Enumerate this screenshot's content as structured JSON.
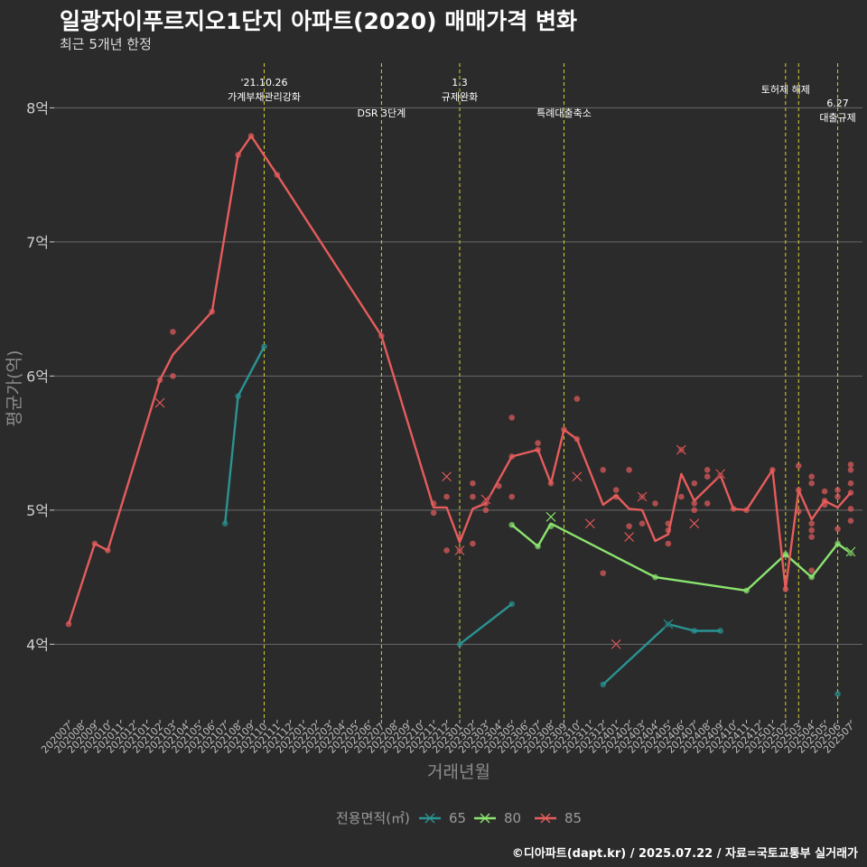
{
  "title": "일광자이푸르지오1단지 아파트(2020) 매매가격 변화",
  "subtitle": "최근 5개년 한정",
  "caption": "©디아파트(dapt.kr) / 2025.07.22 / 자료=국토교통부 실거래가",
  "chart_data": {
    "type": "line",
    "xlabel": "거래년월",
    "ylabel": "평균가(억)",
    "ylim": [
      3.45,
      8.4
    ],
    "yticks": [
      {
        "v": 4,
        "label": "4억"
      },
      {
        "v": 5,
        "label": "5억"
      },
      {
        "v": 6,
        "label": "6억"
      },
      {
        "v": 7,
        "label": "7억"
      },
      {
        "v": 8,
        "label": "8억"
      }
    ],
    "x": [
      "202007",
      "202008",
      "202009",
      "202010",
      "202011",
      "202012",
      "202101",
      "202102",
      "202103",
      "202104",
      "202105",
      "202106",
      "202107",
      "202108",
      "202109",
      "202110",
      "202111",
      "202112",
      "202201",
      "202202",
      "202203",
      "202204",
      "202205",
      "202206",
      "202207",
      "202208",
      "202209",
      "202210",
      "202211",
      "202212",
      "202301",
      "202302",
      "202303",
      "202304",
      "202305",
      "202306",
      "202307",
      "202308",
      "202309",
      "202310",
      "202311",
      "202312",
      "202401",
      "202402",
      "202403",
      "202404",
      "202405",
      "202406",
      "202407",
      "202408",
      "202409",
      "202410",
      "202411",
      "202412",
      "202501",
      "202502",
      "202503",
      "202504",
      "202505",
      "202506",
      "202507"
    ],
    "legend_title": "전용면적(㎡)",
    "legend_position": "bottom",
    "grid": true,
    "series": [
      {
        "name": "65",
        "color": "#2a9393",
        "line": [
          [
            "202107",
            4.9
          ],
          [
            "202108",
            5.85
          ],
          [
            "202110",
            6.22
          ],
          null,
          [
            "202301",
            4.0
          ],
          [
            "202305",
            4.3
          ],
          null,
          [
            "202312",
            3.7
          ],
          [
            "202405",
            4.15
          ],
          [
            "202407",
            4.1
          ],
          [
            "202409",
            4.1
          ]
        ],
        "points": [
          [
            "202107",
            4.9
          ],
          [
            "202108",
            5.85
          ],
          [
            "202110",
            6.22
          ],
          [
            "202301",
            4.0
          ],
          [
            "202305",
            4.3
          ],
          [
            "202312",
            3.7
          ],
          [
            "202405",
            4.15
          ],
          [
            "202407",
            4.1
          ],
          [
            "202409",
            4.1
          ],
          [
            "202506",
            3.63
          ]
        ],
        "crosses": [
          [
            "202405",
            4.15
          ]
        ]
      },
      {
        "name": "80",
        "color": "#8be46f",
        "line": [
          [
            "202305",
            4.89
          ],
          [
            "202307",
            4.73
          ],
          [
            "202308",
            4.9
          ],
          [
            "202404",
            4.5
          ],
          [
            "202411",
            4.4
          ],
          [
            "202502",
            4.67
          ],
          [
            "202504",
            4.5
          ],
          [
            "202506",
            4.75
          ],
          [
            "202507",
            4.68
          ]
        ],
        "points": [
          [
            "202305",
            4.89
          ],
          [
            "202307",
            4.73
          ],
          [
            "202308",
            4.88
          ],
          [
            "202404",
            4.5
          ],
          [
            "202411",
            4.4
          ],
          [
            "202502",
            4.67
          ],
          [
            "202504",
            4.5
          ],
          [
            "202506",
            4.75
          ],
          [
            "202507",
            4.68
          ]
        ],
        "crosses": [
          [
            "202308",
            4.95
          ],
          [
            "202507",
            4.69
          ]
        ]
      },
      {
        "name": "85",
        "color": "#e65c5c",
        "line": [
          [
            "202007",
            4.15
          ],
          [
            "202009",
            4.75
          ],
          [
            "202010",
            4.7
          ],
          [
            "202102",
            5.97
          ],
          [
            "202103",
            6.16
          ],
          [
            "202106",
            6.48
          ],
          [
            "202108",
            7.65
          ],
          [
            "202109",
            7.79
          ],
          [
            "202111",
            7.5
          ],
          [
            "202207",
            6.3
          ],
          [
            "202211",
            5.02
          ],
          [
            "202212",
            5.02
          ],
          [
            "202301",
            4.76
          ],
          [
            "202302",
            5.01
          ],
          [
            "202303",
            5.05
          ],
          [
            "202305",
            5.4
          ],
          [
            "202307",
            5.45
          ],
          [
            "202308",
            5.2
          ],
          [
            "202309",
            5.6
          ],
          [
            "202310",
            5.53
          ],
          [
            "202312",
            5.04
          ],
          [
            "202401",
            5.11
          ],
          [
            "202402",
            5.01
          ],
          [
            "202403",
            5.0
          ],
          [
            "202404",
            4.77
          ],
          [
            "202405",
            4.82
          ],
          [
            "202406",
            5.27
          ],
          [
            "202407",
            5.07
          ],
          [
            "202409",
            5.26
          ],
          [
            "202410",
            5.01
          ],
          [
            "202411",
            5.0
          ],
          [
            "202501",
            5.3
          ],
          [
            "202502",
            4.41
          ],
          [
            "202503",
            5.15
          ],
          [
            "202504",
            4.93
          ],
          [
            "202505",
            5.07
          ],
          [
            "202506",
            5.02
          ],
          [
            "202507",
            5.13
          ]
        ],
        "points": [
          [
            "202007",
            4.15
          ],
          [
            "202009",
            4.75
          ],
          [
            "202010",
            4.7
          ],
          [
            "202102",
            5.97
          ],
          [
            "202103",
            6.33
          ],
          [
            "202103",
            6.0
          ],
          [
            "202106",
            6.48
          ],
          [
            "202108",
            7.65
          ],
          [
            "202109",
            7.79
          ],
          [
            "202111",
            7.5
          ],
          [
            "202207",
            6.3
          ],
          [
            "202211",
            5.05
          ],
          [
            "202211",
            4.98
          ],
          [
            "202212",
            5.1
          ],
          [
            "202212",
            4.7
          ],
          [
            "202301",
            4.8
          ],
          [
            "202301",
            4.7
          ],
          [
            "202302",
            5.2
          ],
          [
            "202302",
            5.1
          ],
          [
            "202302",
            4.75
          ],
          [
            "202303",
            5.0
          ],
          [
            "202303",
            5.05
          ],
          [
            "202304",
            5.18
          ],
          [
            "202305",
            5.69
          ],
          [
            "202305",
            5.4
          ],
          [
            "202305",
            5.1
          ],
          [
            "202307",
            5.5
          ],
          [
            "202307",
            5.45
          ],
          [
            "202308",
            5.2
          ],
          [
            "202309",
            5.6
          ],
          [
            "202310",
            5.83
          ],
          [
            "202310",
            5.53
          ],
          [
            "202312",
            5.3
          ],
          [
            "202312",
            4.53
          ],
          [
            "202401",
            5.15
          ],
          [
            "202401",
            5.1
          ],
          [
            "202402",
            5.3
          ],
          [
            "202402",
            4.88
          ],
          [
            "202403",
            5.1
          ],
          [
            "202403",
            4.9
          ],
          [
            "202404",
            5.05
          ],
          [
            "202405",
            4.9
          ],
          [
            "202405",
            4.85
          ],
          [
            "202405",
            4.75
          ],
          [
            "202406",
            5.45
          ],
          [
            "202406",
            5.1
          ],
          [
            "202407",
            5.2
          ],
          [
            "202407",
            5.05
          ],
          [
            "202407",
            5.0
          ],
          [
            "202408",
            5.3
          ],
          [
            "202408",
            5.25
          ],
          [
            "202408",
            5.05
          ],
          [
            "202409",
            5.26
          ],
          [
            "202410",
            5.01
          ],
          [
            "202411",
            5.0
          ],
          [
            "202501",
            5.3
          ],
          [
            "202502",
            4.41
          ],
          [
            "202503",
            5.33
          ],
          [
            "202503",
            5.15
          ],
          [
            "202503",
            4.99
          ],
          [
            "202504",
            5.25
          ],
          [
            "202504",
            5.2
          ],
          [
            "202504",
            4.9
          ],
          [
            "202504",
            4.85
          ],
          [
            "202504",
            4.8
          ],
          [
            "202504",
            4.55
          ],
          [
            "202505",
            5.14
          ],
          [
            "202505",
            5.07
          ],
          [
            "202505",
            5.04
          ],
          [
            "202506",
            5.15
          ],
          [
            "202506",
            5.1
          ],
          [
            "202506",
            4.86
          ],
          [
            "202507",
            5.34
          ],
          [
            "202507",
            5.3
          ],
          [
            "202507",
            5.2
          ],
          [
            "202507",
            5.13
          ],
          [
            "202507",
            5.01
          ],
          [
            "202507",
            4.92
          ]
        ],
        "crosses": [
          [
            "202102",
            5.8
          ],
          [
            "202212",
            5.25
          ],
          [
            "202301",
            4.7
          ],
          [
            "202303",
            5.08
          ],
          [
            "202310",
            5.25
          ],
          [
            "202311",
            4.9
          ],
          [
            "202401",
            4.0
          ],
          [
            "202402",
            4.8
          ],
          [
            "202403",
            5.1
          ],
          [
            "202406",
            5.45
          ],
          [
            "202407",
            4.9
          ],
          [
            "202409",
            5.27
          ]
        ]
      }
    ],
    "events": [
      {
        "x": "202110",
        "lines": [
          "'21.10.26",
          "가계부채관리강화"
        ],
        "pos": "top"
      },
      {
        "x": "202207",
        "lines": [
          "DSR 3단계"
        ],
        "pos": "mid"
      },
      {
        "x": "202301",
        "lines": [
          "1.3",
          "규제완화"
        ],
        "pos": "top"
      },
      {
        "x": "202309",
        "lines": [
          "특례대출축소"
        ],
        "pos": "mid"
      },
      {
        "x": "202502",
        "lines": [
          "토허제 해제"
        ],
        "pos": "top2"
      },
      {
        "x": "202503",
        "lines": [],
        "pos": "none"
      },
      {
        "x": "202506",
        "lines": [
          "6.27",
          "대출규제"
        ],
        "pos": "low"
      }
    ]
  }
}
